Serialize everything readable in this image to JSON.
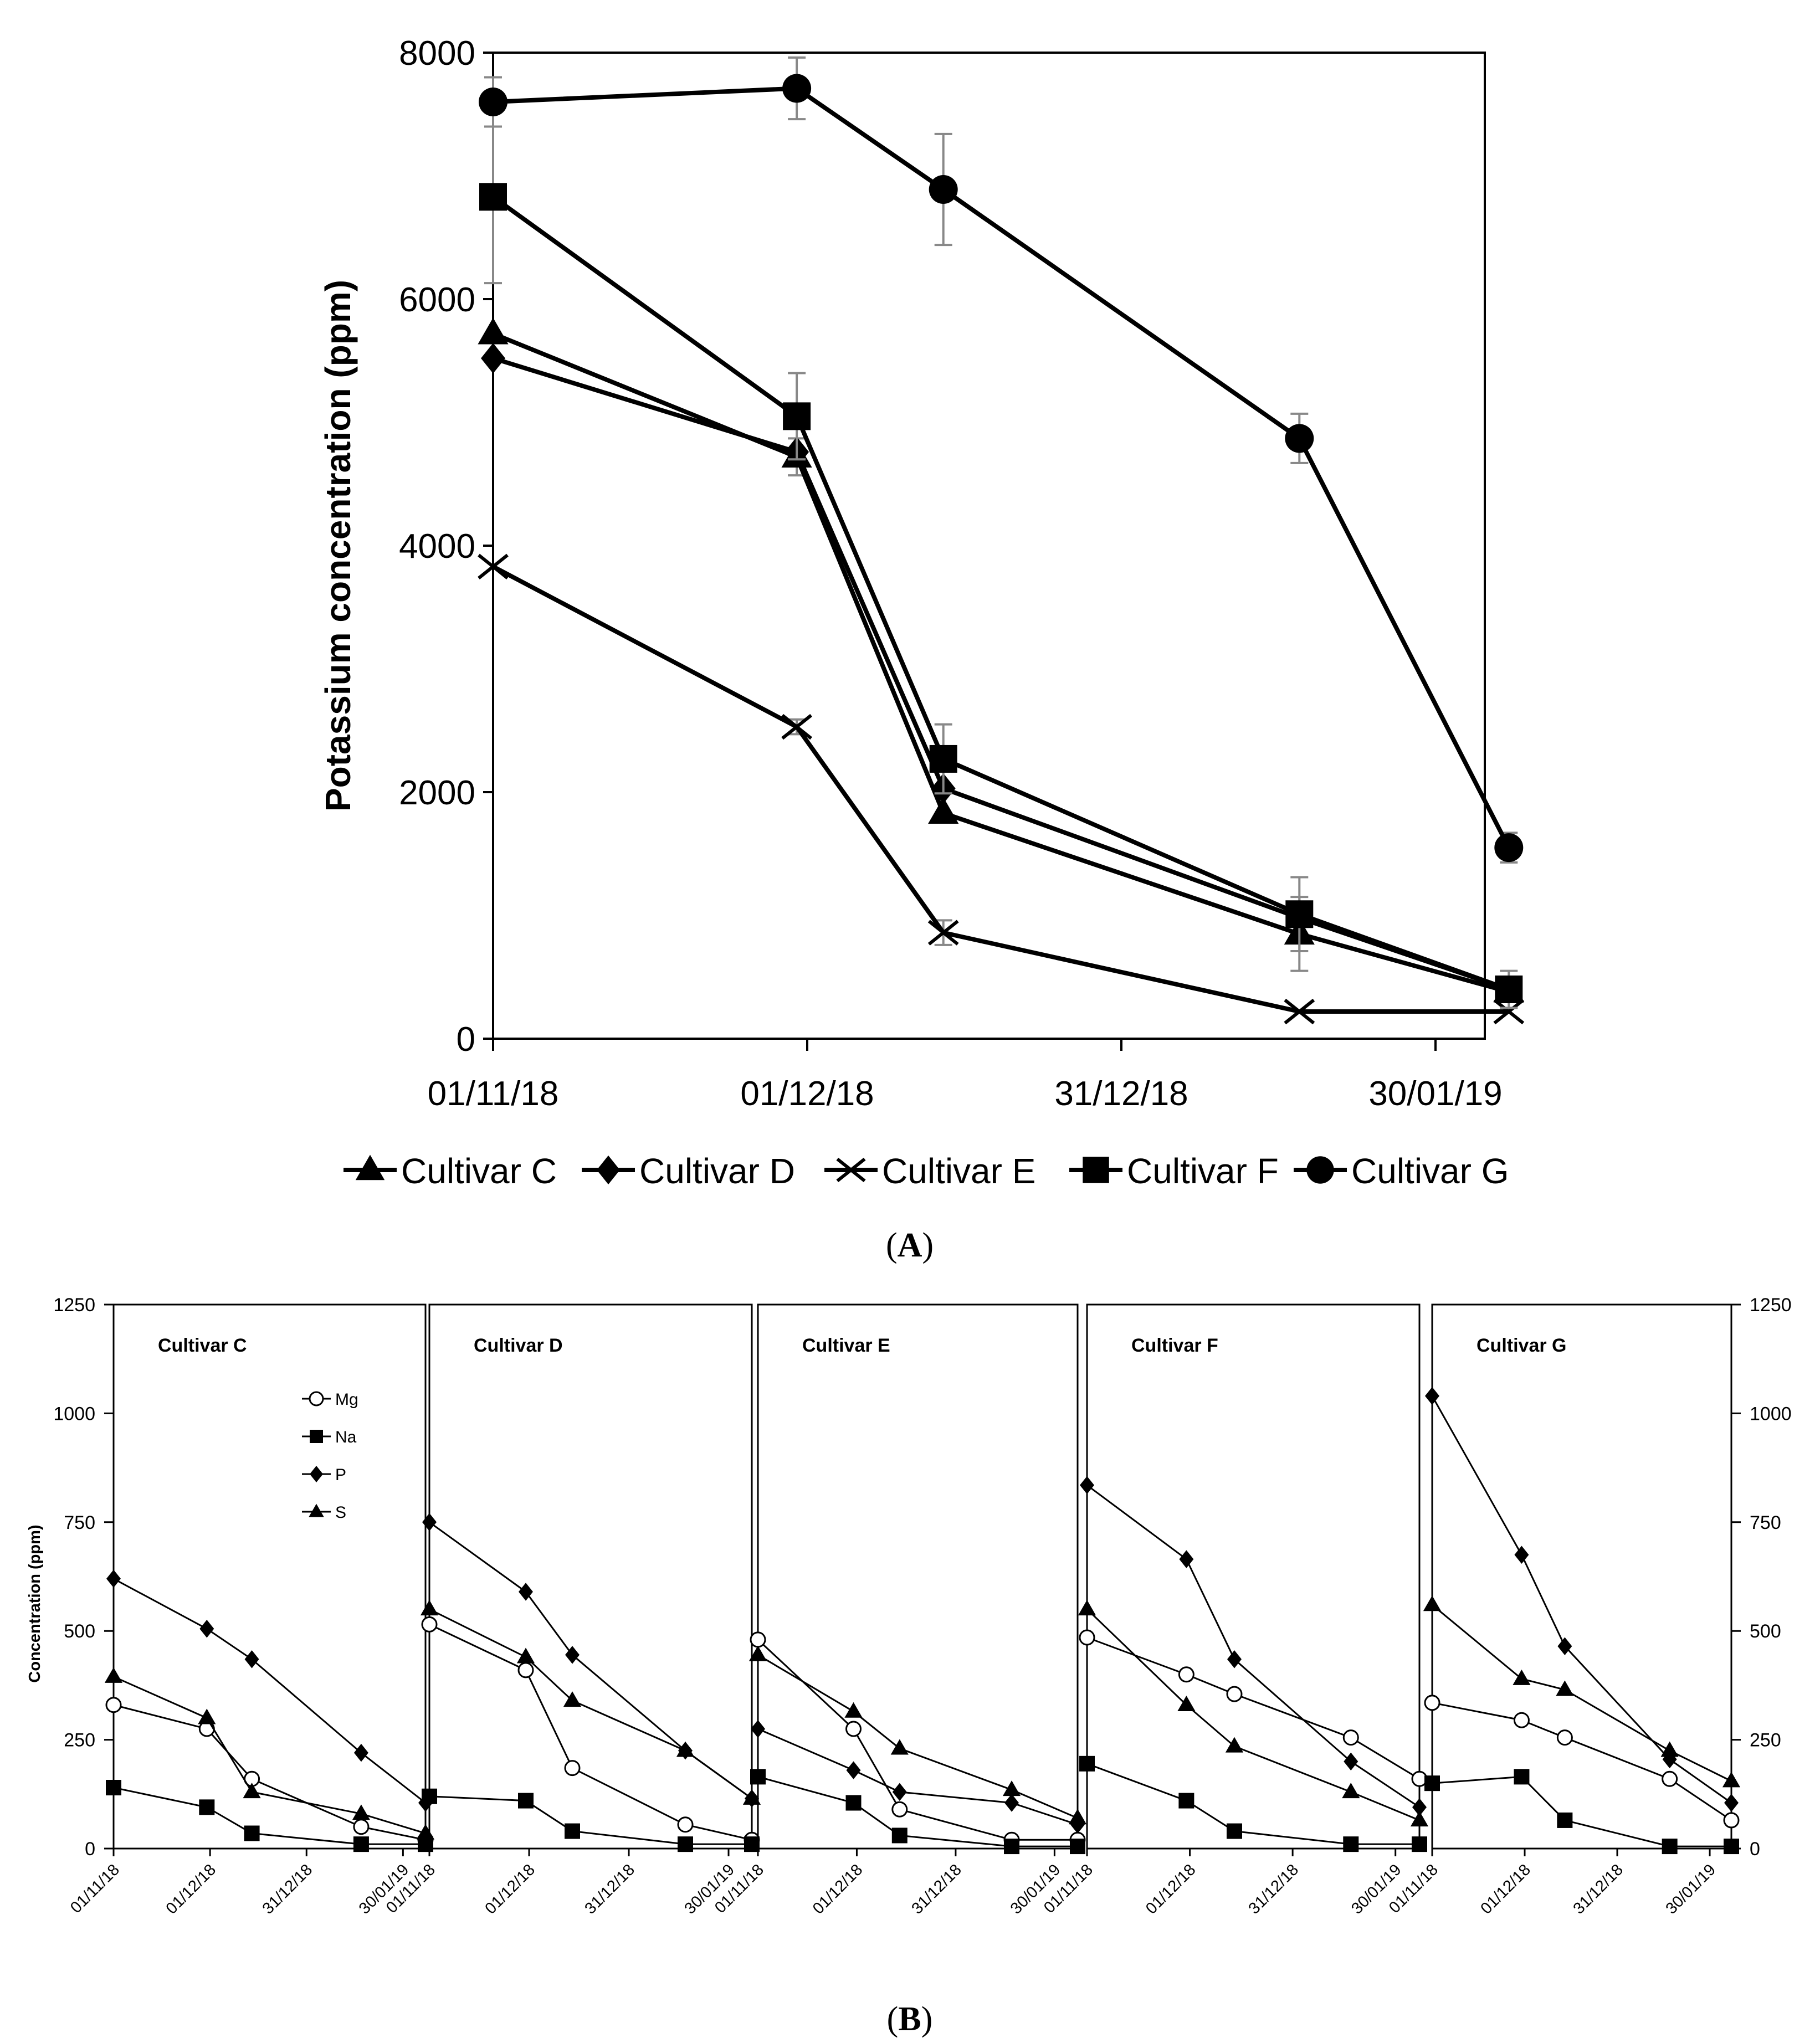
{
  "chart_data": [
    {
      "id": "A",
      "type": "line",
      "caption": "A",
      "title": "",
      "xlabel": "",
      "ylabel": "Potassium concentration (ppm)",
      "ylim": [
        0,
        8000
      ],
      "yticks": [
        0,
        2000,
        4000,
        6000,
        8000
      ],
      "xlim_days": [
        0,
        97
      ],
      "xticks": [
        {
          "day": 0,
          "label": "01/11/18"
        },
        {
          "day": 30,
          "label": "01/12/18"
        },
        {
          "day": 60,
          "label": "31/12/18"
        },
        {
          "day": 90,
          "label": "30/01/19"
        }
      ],
      "x_days": [
        0,
        29,
        43,
        77,
        97
      ],
      "legend_position": "bottom",
      "series": [
        {
          "name": "Cultivar C",
          "marker": "triangle",
          "values": [
            5720,
            4720,
            1830,
            850,
            380
          ],
          "errors": [
            0,
            150,
            0,
            300,
            0
          ]
        },
        {
          "name": "Cultivar D",
          "marker": "diamond",
          "values": [
            5520,
            4760,
            2030,
            980,
            400
          ],
          "errors": [
            0,
            0,
            0,
            0,
            0
          ]
        },
        {
          "name": "Cultivar E",
          "marker": "x",
          "values": [
            3830,
            2530,
            860,
            220,
            220
          ],
          "errors": [
            0,
            60,
            100,
            0,
            0
          ]
        },
        {
          "name": "Cultivar F",
          "marker": "square",
          "values": [
            6830,
            5050,
            2270,
            1010,
            400
          ],
          "errors": [
            700,
            350,
            280,
            300,
            150
          ]
        },
        {
          "name": "Cultivar G",
          "marker": "circle",
          "values": [
            7600,
            7710,
            6890,
            4870,
            1550
          ],
          "errors": [
            200,
            250,
            450,
            200,
            120
          ]
        }
      ]
    },
    {
      "id": "B",
      "type": "line",
      "caption": "B",
      "ylabel": "Concentration (ppm)",
      "ylim": [
        0,
        1250
      ],
      "yticks": [
        0,
        250,
        500,
        750,
        1000,
        1250
      ],
      "xlim_days": [
        0,
        97
      ],
      "xticks": [
        {
          "day": 0,
          "label": "01/11/18"
        },
        {
          "day": 30,
          "label": "01/12/18"
        },
        {
          "day": 60,
          "label": "31/12/18"
        },
        {
          "day": 90,
          "label": "30/01/19"
        }
      ],
      "x_days": [
        0,
        29,
        43,
        77,
        97
      ],
      "legend_position": "top-right of first panel",
      "legend": [
        {
          "name": "Mg",
          "marker": "circle-open"
        },
        {
          "name": "Na",
          "marker": "square"
        },
        {
          "name": "P",
          "marker": "diamond"
        },
        {
          "name": "S",
          "marker": "triangle"
        }
      ],
      "panels": [
        {
          "title": "Cultivar C",
          "series": {
            "Mg": [
              330,
              275,
              160,
              50,
              20
            ],
            "Na": [
              140,
              95,
              35,
              10,
              10
            ],
            "P": [
              620,
              505,
              435,
              220,
              105
            ],
            "S": [
              395,
              300,
              130,
              80,
              35
            ]
          }
        },
        {
          "title": "Cultivar D",
          "series": {
            "Mg": [
              515,
              410,
              185,
              55,
              20
            ],
            "Na": [
              120,
              110,
              40,
              10,
              10
            ],
            "P": [
              750,
              590,
              445,
              225,
              115
            ],
            "S": [
              550,
              440,
              340,
              225,
              115
            ]
          }
        },
        {
          "title": "Cultivar E",
          "series": {
            "Mg": [
              480,
              275,
              90,
              20,
              20
            ],
            "Na": [
              165,
              105,
              30,
              5,
              5
            ],
            "P": [
              275,
              180,
              130,
              105,
              55
            ],
            "S": [
              445,
              315,
              230,
              135,
              70
            ]
          }
        },
        {
          "title": "Cultivar F",
          "series": {
            "Mg": [
              485,
              400,
              355,
              255,
              160
            ],
            "Na": [
              195,
              110,
              40,
              10,
              10
            ],
            "P": [
              835,
              665,
              435,
              200,
              95
            ],
            "S": [
              550,
              330,
              235,
              130,
              65
            ]
          }
        },
        {
          "title": "Cultivar G",
          "series": {
            "Mg": [
              335,
              295,
              255,
              160,
              65
            ],
            "Na": [
              150,
              165,
              65,
              5,
              5
            ],
            "P": [
              1040,
              675,
              465,
              205,
              105
            ],
            "S": [
              560,
              390,
              365,
              225,
              155
            ]
          }
        }
      ]
    }
  ]
}
